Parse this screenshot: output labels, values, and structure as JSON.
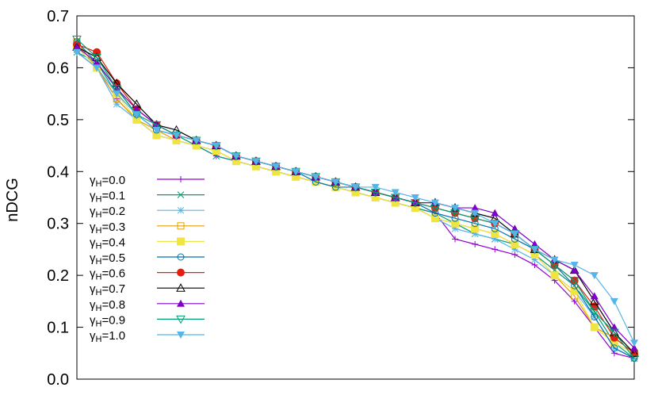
{
  "chart_data": {
    "type": "line",
    "title": "",
    "xlabel": "",
    "ylabel": "nDCG",
    "ylim": [
      0.0,
      0.7
    ],
    "xlim": [
      0,
      100
    ],
    "y_ticks": [
      "0.0",
      "0.1",
      "0.2",
      "0.3",
      "0.4",
      "0.5",
      "0.6",
      "0.7"
    ],
    "grid": false,
    "legend_position": "bottom-left",
    "series": [
      {
        "name": "γH=0.0",
        "label_main": "γ",
        "label_sub": "H",
        "label_rest": "=0.0",
        "color": "#9400d3",
        "marker": "plus",
        "values": [
          0.63,
          0.6,
          0.54,
          0.5,
          0.47,
          0.46,
          0.45,
          0.43,
          0.42,
          0.41,
          0.4,
          0.39,
          0.38,
          0.37,
          0.36,
          0.35,
          0.34,
          0.33,
          0.32,
          0.27,
          0.26,
          0.25,
          0.24,
          0.22,
          0.19,
          0.15,
          0.1,
          0.05,
          0.04
        ]
      },
      {
        "name": "γH=0.1",
        "label_main": "γ",
        "label_sub": "H",
        "label_rest": "=0.1",
        "color": "#009e73",
        "marker": "x",
        "values": [
          0.63,
          0.61,
          0.55,
          0.51,
          0.48,
          0.47,
          0.45,
          0.43,
          0.42,
          0.41,
          0.4,
          0.39,
          0.38,
          0.37,
          0.36,
          0.35,
          0.34,
          0.33,
          0.32,
          0.3,
          0.28,
          0.27,
          0.26,
          0.24,
          0.21,
          0.18,
          0.13,
          0.07,
          0.04
        ]
      },
      {
        "name": "γH=0.2",
        "label_main": "γ",
        "label_sub": "H",
        "label_rest": "=0.2",
        "color": "#56b4e9",
        "marker": "star",
        "values": [
          0.64,
          0.6,
          0.53,
          0.5,
          0.47,
          0.46,
          0.45,
          0.44,
          0.42,
          0.41,
          0.4,
          0.39,
          0.38,
          0.37,
          0.36,
          0.35,
          0.34,
          0.33,
          0.31,
          0.29,
          0.28,
          0.27,
          0.25,
          0.23,
          0.2,
          0.17,
          0.12,
          0.06,
          0.04
        ]
      },
      {
        "name": "γH=0.3",
        "label_main": "γ",
        "label_sub": "H",
        "label_rest": "=0.3",
        "color": "#e69f00",
        "marker": "square-open",
        "values": [
          0.65,
          0.6,
          0.54,
          0.5,
          0.48,
          0.46,
          0.45,
          0.44,
          0.42,
          0.41,
          0.4,
          0.39,
          0.38,
          0.37,
          0.36,
          0.35,
          0.34,
          0.33,
          0.31,
          0.3,
          0.29,
          0.28,
          0.26,
          0.24,
          0.2,
          0.16,
          0.1,
          0.08,
          0.05
        ]
      },
      {
        "name": "γH=0.4",
        "label_main": "γ",
        "label_sub": "H",
        "label_rest": "=0.4",
        "color": "#f0e442",
        "marker": "square-filled",
        "values": [
          0.64,
          0.6,
          0.55,
          0.5,
          0.47,
          0.46,
          0.45,
          0.44,
          0.42,
          0.41,
          0.4,
          0.39,
          0.38,
          0.37,
          0.36,
          0.35,
          0.34,
          0.33,
          0.31,
          0.3,
          0.29,
          0.28,
          0.26,
          0.24,
          0.2,
          0.17,
          0.1,
          0.07,
          0.05
        ]
      },
      {
        "name": "γH=0.5",
        "label_main": "γ",
        "label_sub": "H",
        "label_rest": "=0.5",
        "color": "#0072b2",
        "marker": "circle-open",
        "values": [
          0.65,
          0.61,
          0.56,
          0.51,
          0.48,
          0.47,
          0.46,
          0.45,
          0.43,
          0.42,
          0.41,
          0.4,
          0.38,
          0.37,
          0.37,
          0.36,
          0.35,
          0.34,
          0.32,
          0.31,
          0.3,
          0.29,
          0.27,
          0.25,
          0.22,
          0.18,
          0.12,
          0.06,
          0.04
        ]
      },
      {
        "name": "γH=0.6",
        "label_main": "γ",
        "label_sub": "H",
        "label_rest": "=0.6",
        "color": "#e51e10",
        "marker": "circle-filled",
        "values": [
          0.645,
          0.63,
          0.57,
          0.52,
          0.49,
          0.47,
          0.46,
          0.45,
          0.43,
          0.42,
          0.41,
          0.4,
          0.39,
          0.38,
          0.37,
          0.36,
          0.35,
          0.34,
          0.33,
          0.32,
          0.31,
          0.3,
          0.28,
          0.25,
          0.22,
          0.19,
          0.14,
          0.08,
          0.05
        ]
      },
      {
        "name": "γH=0.7",
        "label_main": "γ",
        "label_sub": "H",
        "label_rest": "=0.7",
        "color": "#000000",
        "marker": "triangle-open",
        "values": [
          0.64,
          0.62,
          0.57,
          0.53,
          0.49,
          0.48,
          0.46,
          0.45,
          0.43,
          0.42,
          0.41,
          0.4,
          0.39,
          0.38,
          0.37,
          0.36,
          0.35,
          0.34,
          0.34,
          0.33,
          0.32,
          0.31,
          0.28,
          0.25,
          0.23,
          0.21,
          0.15,
          0.09,
          0.05
        ]
      },
      {
        "name": "γH=0.8",
        "label_main": "γ",
        "label_sub": "H",
        "label_rest": "=0.8",
        "color": "#8000c8",
        "marker": "triangle-filled",
        "values": [
          0.64,
          0.61,
          0.56,
          0.52,
          0.49,
          0.47,
          0.46,
          0.45,
          0.43,
          0.42,
          0.41,
          0.4,
          0.39,
          0.38,
          0.37,
          0.36,
          0.35,
          0.34,
          0.34,
          0.33,
          0.33,
          0.32,
          0.29,
          0.26,
          0.23,
          0.21,
          0.16,
          0.1,
          0.06
        ]
      },
      {
        "name": "γH=0.9",
        "label_main": "γ",
        "label_sub": "H",
        "label_rest": "=0.9",
        "color": "#009e73",
        "marker": "triangle-down-open",
        "values": [
          0.655,
          0.62,
          0.56,
          0.51,
          0.49,
          0.47,
          0.46,
          0.45,
          0.43,
          0.42,
          0.41,
          0.4,
          0.39,
          0.38,
          0.37,
          0.36,
          0.35,
          0.34,
          0.33,
          0.32,
          0.31,
          0.3,
          0.28,
          0.25,
          0.22,
          0.19,
          0.13,
          0.09,
          0.04
        ]
      },
      {
        "name": "γH=1.0",
        "label_main": "γ",
        "label_sub": "H",
        "label_rest": "=1.0",
        "color": "#56b4e9",
        "marker": "triangle-down-filled",
        "values": [
          0.63,
          0.6,
          0.55,
          0.51,
          0.48,
          0.47,
          0.46,
          0.45,
          0.43,
          0.42,
          0.41,
          0.4,
          0.39,
          0.38,
          0.37,
          0.37,
          0.36,
          0.35,
          0.34,
          0.33,
          0.32,
          0.3,
          0.28,
          0.25,
          0.23,
          0.22,
          0.2,
          0.15,
          0.07
        ]
      }
    ]
  }
}
